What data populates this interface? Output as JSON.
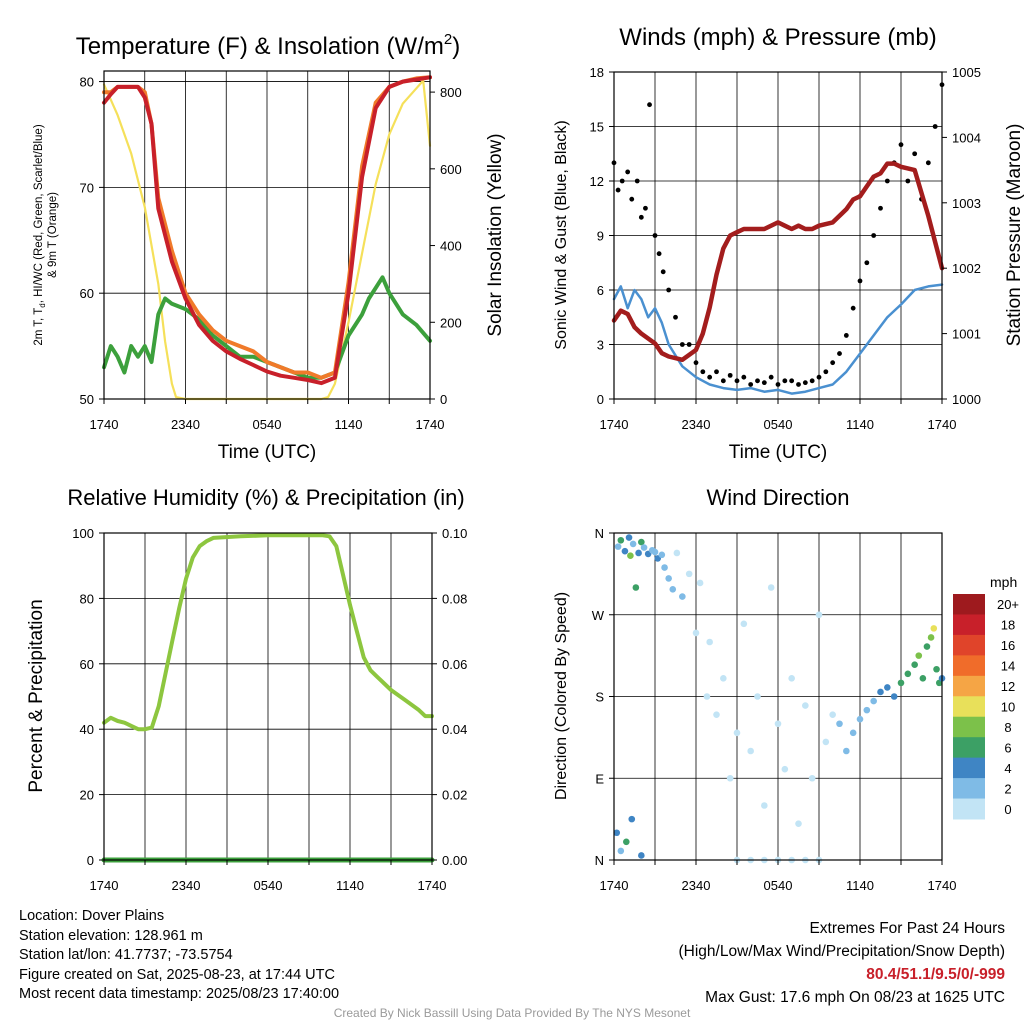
{
  "footer": {
    "location": "Location: Dover Plains",
    "elevation": "Station elevation: 128.961 m",
    "latlon": "Station lat/lon: 41.7737; -73.5754",
    "created": "Figure created on Sat, 2025-08-23, at 17:44 UTC",
    "recent": "Most recent data timestamp: 2025/08/23 17:40:00",
    "extremes_title": "Extremes For Past 24 Hours",
    "extremes_subtitle": "(High/Low/Max Wind/Precipitation/Snow Depth)",
    "extremes_values": "80.4/51.1/9.5/0/-999",
    "max_gust": "Max Gust: 17.6 mph On 08/23 at 1625 UTC",
    "credit": "Created By Nick Bassill Using Data Provided By The NYS Mesonet"
  },
  "chart_data": [
    {
      "type": "line",
      "title_main": "Temperature (F) & Insolation (W/m",
      "title_sup": "2",
      "title_end": ")",
      "xlabel": "Time (UTC)",
      "ylabel_line1": "2m T, T",
      "ylabel_sub": "d",
      "ylabel_rest": ", HI/WC (Red, Green, Scarlet/Blue)",
      "ylabel_line2": "& 9m T (Orange)",
      "ylabel_right": "Solar Insolation (Yellow)",
      "x_ticks": [
        "1740",
        "2340",
        "0540",
        "1140",
        "1740"
      ],
      "x_range_hours": [
        0,
        24
      ],
      "ylim": [
        50,
        81
      ],
      "y_ticks": [
        50,
        60,
        70,
        80
      ],
      "y2lim": [
        0,
        855
      ],
      "y2_ticks": [
        0,
        200,
        400,
        600,
        800
      ],
      "series": [
        {
          "color": "#f07a2a",
          "axis": "left",
          "x": [
            0,
            0.5,
            1,
            2,
            2.5,
            3,
            3.5,
            4,
            5,
            6,
            7,
            8,
            9,
            10,
            11,
            12,
            13,
            14,
            15,
            16,
            17,
            18,
            19,
            20,
            21,
            22,
            23,
            24
          ],
          "y": [
            79,
            79,
            79.5,
            79.5,
            79.5,
            79,
            76,
            69,
            64,
            60,
            58,
            56.5,
            55.5,
            55,
            54.5,
            53.5,
            53,
            52.5,
            52.5,
            52,
            52.5,
            61,
            72,
            78,
            79.5,
            80,
            80.3,
            80.4
          ]
        },
        {
          "color": "#c8202a",
          "axis": "left",
          "x": [
            0,
            0.5,
            1,
            2,
            2.5,
            3,
            3.5,
            4,
            5,
            6,
            7,
            8,
            9,
            10,
            11,
            12,
            13,
            14,
            15,
            16,
            17,
            18,
            19,
            20,
            21,
            22,
            23,
            24
          ],
          "y": [
            78,
            78.8,
            79.5,
            79.5,
            79.5,
            78.5,
            76,
            68,
            63,
            59.5,
            57,
            55.5,
            54.5,
            53.8,
            53.2,
            52.6,
            52.2,
            52,
            51.8,
            51.5,
            52,
            60,
            71,
            77.5,
            79.5,
            80,
            80.2,
            80.4
          ]
        },
        {
          "color": "#3ca03c",
          "axis": "left",
          "x": [
            0,
            0.5,
            1,
            1.5,
            2,
            2.5,
            3,
            3.5,
            4,
            4.5,
            5,
            6,
            7,
            8,
            9,
            10,
            11,
            12,
            13,
            14,
            15,
            16,
            17,
            18,
            19,
            19.5,
            20,
            20.5,
            21,
            22,
            23,
            24
          ],
          "y": [
            53,
            55,
            54,
            52.5,
            55,
            54,
            55,
            53.5,
            58,
            59.5,
            59,
            58.5,
            57.5,
            56,
            55,
            54,
            54,
            53.5,
            53,
            52.5,
            52,
            52,
            52.5,
            56,
            58,
            59.5,
            60.5,
            61.5,
            60,
            58,
            57,
            55.5
          ]
        },
        {
          "color": "#f5e05a",
          "axis": "right",
          "x": [
            0,
            1,
            2,
            3,
            4,
            4.5,
            5,
            5.3,
            6,
            8,
            10,
            12,
            14,
            16,
            16.5,
            17,
            18,
            19,
            20,
            21,
            22,
            23,
            23.5,
            24
          ],
          "y": [
            820,
            740,
            640,
            500,
            300,
            150,
            40,
            5,
            0,
            0,
            0,
            0,
            0,
            0,
            5,
            40,
            200,
            380,
            560,
            690,
            770,
            810,
            830,
            660
          ]
        }
      ]
    },
    {
      "type": "line",
      "title": "Winds (mph) & Pressure (mb)",
      "xlabel": "Time (UTC)",
      "ylabel": "Sonic Wind & Gust (Blue, Black)",
      "ylabel_right": "Station Pressure (Maroon)",
      "x_ticks": [
        "1740",
        "2340",
        "0540",
        "1140",
        "1740"
      ],
      "x_range_hours": [
        0,
        24
      ],
      "ylim": [
        0,
        18
      ],
      "y_ticks": [
        0,
        3,
        6,
        9,
        12,
        15,
        18
      ],
      "y2lim": [
        1000,
        1005
      ],
      "y2_ticks": [
        1000,
        1001,
        1002,
        1003,
        1004,
        1005
      ],
      "series": [
        {
          "color": "#4a90d0",
          "axis": "left",
          "x": [
            0,
            0.5,
            1,
            1.5,
            2,
            2.5,
            3,
            3.5,
            4,
            5,
            6,
            7,
            8,
            9,
            10,
            11,
            12,
            13,
            14,
            15,
            16,
            17,
            18,
            19,
            20,
            21,
            22,
            23,
            24
          ],
          "y": [
            5.5,
            6.2,
            5,
            6,
            5.5,
            4.5,
            5,
            4.2,
            3,
            1.8,
            1.2,
            0.8,
            0.6,
            0.5,
            0.6,
            0.4,
            0.5,
            0.3,
            0.4,
            0.6,
            0.8,
            1.5,
            2.5,
            3.5,
            4.5,
            5.2,
            6,
            6.2,
            6.3
          ]
        },
        {
          "color": "#000000",
          "axis": "left",
          "x": [
            0,
            0.3,
            0.6,
            1,
            1.3,
            1.7,
            2,
            2.3,
            2.6,
            3,
            3.3,
            3.6,
            4,
            4.5,
            5,
            5.5,
            6,
            6.5,
            7,
            7.5,
            8,
            8.5,
            9,
            9.5,
            10,
            10.5,
            11,
            11.5,
            12,
            12.5,
            13,
            13.5,
            14,
            14.5,
            15,
            15.5,
            16,
            16.5,
            17,
            17.5,
            18,
            18.5,
            19,
            19.5,
            20,
            20.5,
            21,
            21.5,
            22,
            22.5,
            23,
            23.5,
            24
          ],
          "y": [
            13,
            11.5,
            12,
            12.5,
            11,
            12,
            10,
            10.5,
            16.2,
            9,
            8,
            7,
            6,
            4.5,
            3,
            3,
            2,
            1.5,
            1.2,
            1.5,
            1,
            1.3,
            1,
            1.2,
            0.8,
            1,
            0.9,
            1.2,
            0.8,
            1,
            1,
            0.8,
            0.9,
            1,
            1.2,
            1.5,
            2,
            2.5,
            3.5,
            5,
            6.5,
            7.5,
            9,
            10.5,
            12,
            13,
            14,
            12,
            13.5,
            11,
            13,
            15,
            17.3
          ]
        },
        {
          "color": "#a31d1d",
          "axis": "right",
          "x": [
            0,
            0.5,
            1,
            1.5,
            2,
            3,
            3.5,
            4,
            5,
            6,
            6.5,
            7,
            7.5,
            8,
            8.5,
            9,
            9.5,
            10,
            11,
            12,
            12.5,
            13,
            13.5,
            14,
            14.5,
            15,
            16,
            17,
            17.5,
            18,
            18.5,
            19,
            19.5,
            20,
            20.5,
            21,
            22,
            23,
            24
          ],
          "y": [
            1001.2,
            1001.35,
            1001.3,
            1001.1,
            1001.0,
            1000.85,
            1000.7,
            1000.65,
            1000.6,
            1000.75,
            1001.0,
            1001.4,
            1001.9,
            1002.3,
            1002.5,
            1002.55,
            1002.6,
            1002.6,
            1002.6,
            1002.7,
            1002.65,
            1002.6,
            1002.65,
            1002.6,
            1002.6,
            1002.65,
            1002.7,
            1002.9,
            1003.05,
            1003.1,
            1003.25,
            1003.4,
            1003.45,
            1003.6,
            1003.6,
            1003.55,
            1003.5,
            1002.8,
            1002.0
          ]
        }
      ]
    },
    {
      "type": "line",
      "title": "Relative Humidity (%) & Precipitation (in)",
      "ylabel": "Percent & Precipitation",
      "x_ticks": [
        "1740",
        "2340",
        "0540",
        "1140",
        "1740"
      ],
      "x_range_hours": [
        0,
        24
      ],
      "ylim": [
        0,
        100
      ],
      "y_ticks": [
        0,
        20,
        40,
        60,
        80,
        100
      ],
      "y2lim": [
        0,
        0.1
      ],
      "y2_ticks": [
        "0.00",
        "0.02",
        "0.04",
        "0.06",
        "0.08",
        "0.10"
      ],
      "series": [
        {
          "color": "#8dc63f",
          "axis": "left",
          "x": [
            0,
            0.5,
            1,
            1.5,
            2,
            2.5,
            3,
            3.5,
            4,
            4.5,
            5,
            5.5,
            6,
            6.5,
            7,
            7.5,
            8,
            10,
            12,
            14,
            15,
            16,
            16.5,
            17,
            17.5,
            18,
            18.5,
            19,
            19.5,
            20,
            21,
            22,
            23,
            23.5,
            24
          ],
          "y": [
            42,
            43.5,
            42.5,
            42,
            41,
            40,
            40,
            40.5,
            47,
            57,
            67,
            77,
            86,
            92.5,
            96,
            97.5,
            98.5,
            99,
            99.3,
            99.3,
            99.3,
            99.3,
            99,
            96,
            87,
            78,
            70,
            62,
            58,
            56,
            52,
            49,
            46,
            44,
            44
          ]
        },
        {
          "color": "#3ca03c",
          "axis": "right",
          "x": [
            0,
            24
          ],
          "y": [
            0,
            0
          ]
        }
      ]
    },
    {
      "type": "scatter",
      "title": "Wind Direction",
      "ylabel": "Direction (Colored By Speed)",
      "x_ticks": [
        "1740",
        "2340",
        "0540",
        "1140",
        "1740"
      ],
      "x_range_hours": [
        0,
        24
      ],
      "y_ticks": [
        "N",
        "E",
        "S",
        "W",
        "N"
      ],
      "ylim_deg": [
        0,
        360
      ],
      "legend_title": "mph",
      "legend_labels": [
        "0",
        "2",
        "4",
        "6",
        "8",
        "10",
        "12",
        "14",
        "16",
        "18",
        "20+"
      ],
      "legend_colors": [
        "#c2e4f5",
        "#7fbbe6",
        "#3f85c4",
        "#3ca065",
        "#7cc14a",
        "#e8e05a",
        "#f5a545",
        "#f06c2a",
        "#e0442a",
        "#c8202a",
        "#9e1a1e"
      ],
      "points": [
        {
          "h": 0.3,
          "d": 345,
          "s": 3
        },
        {
          "h": 0.5,
          "d": 352,
          "s": 6
        },
        {
          "h": 0.8,
          "d": 340,
          "s": 4
        },
        {
          "h": 1.1,
          "d": 355,
          "s": 5
        },
        {
          "h": 1.2,
          "d": 335,
          "s": 8
        },
        {
          "h": 1.4,
          "d": 348,
          "s": 3
        },
        {
          "h": 1.6,
          "d": 300,
          "s": 7
        },
        {
          "h": 1.8,
          "d": 338,
          "s": 4
        },
        {
          "h": 2.0,
          "d": 350,
          "s": 6
        },
        {
          "h": 2.2,
          "d": 344,
          "s": 3
        },
        {
          "h": 2.5,
          "d": 337,
          "s": 5
        },
        {
          "h": 2.8,
          "d": 341,
          "s": 2
        },
        {
          "h": 3.0,
          "d": 339,
          "s": 3
        },
        {
          "h": 3.2,
          "d": 332,
          "s": 4
        },
        {
          "h": 3.5,
          "d": 336,
          "s": 2
        },
        {
          "h": 3.7,
          "d": 322,
          "s": 3
        },
        {
          "h": 4.0,
          "d": 310,
          "s": 2
        },
        {
          "h": 4.3,
          "d": 298,
          "s": 2
        },
        {
          "h": 4.6,
          "d": 338,
          "s": 1
        },
        {
          "h": 5.0,
          "d": 290,
          "s": 2
        },
        {
          "h": 5.5,
          "d": 315,
          "s": 1
        },
        {
          "h": 6.0,
          "d": 250,
          "s": 1
        },
        {
          "h": 6.3,
          "d": 305,
          "s": 1
        },
        {
          "h": 6.8,
          "d": 180,
          "s": 1
        },
        {
          "h": 7.0,
          "d": 240,
          "s": 1
        },
        {
          "h": 7.5,
          "d": 160,
          "s": 1
        },
        {
          "h": 8.0,
          "d": 200,
          "s": 1
        },
        {
          "h": 8.5,
          "d": 90,
          "s": 1
        },
        {
          "h": 9.0,
          "d": 140,
          "s": 1
        },
        {
          "h": 9.5,
          "d": 260,
          "s": 1
        },
        {
          "h": 10.0,
          "d": 120,
          "s": 1
        },
        {
          "h": 10.5,
          "d": 180,
          "s": 1
        },
        {
          "h": 11.0,
          "d": 60,
          "s": 1
        },
        {
          "h": 11.5,
          "d": 300,
          "s": 1
        },
        {
          "h": 12.0,
          "d": 150,
          "s": 1
        },
        {
          "h": 12.5,
          "d": 100,
          "s": 1
        },
        {
          "h": 13.0,
          "d": 200,
          "s": 1
        },
        {
          "h": 13.5,
          "d": 40,
          "s": 1
        },
        {
          "h": 14.0,
          "d": 170,
          "s": 1
        },
        {
          "h": 14.5,
          "d": 90,
          "s": 1
        },
        {
          "h": 15.0,
          "d": 270,
          "s": 1
        },
        {
          "h": 15.5,
          "d": 130,
          "s": 1
        },
        {
          "h": 16.0,
          "d": 160,
          "s": 1
        },
        {
          "h": 16.5,
          "d": 150,
          "s": 2
        },
        {
          "h": 17.0,
          "d": 120,
          "s": 2
        },
        {
          "h": 17.5,
          "d": 140,
          "s": 2
        },
        {
          "h": 18.0,
          "d": 155,
          "s": 2
        },
        {
          "h": 18.5,
          "d": 165,
          "s": 3
        },
        {
          "h": 19.0,
          "d": 175,
          "s": 3
        },
        {
          "h": 19.5,
          "d": 185,
          "s": 4
        },
        {
          "h": 20.0,
          "d": 190,
          "s": 4
        },
        {
          "h": 20.5,
          "d": 180,
          "s": 5
        },
        {
          "h": 21.0,
          "d": 195,
          "s": 6
        },
        {
          "h": 21.5,
          "d": 205,
          "s": 6
        },
        {
          "h": 22.0,
          "d": 215,
          "s": 7
        },
        {
          "h": 22.3,
          "d": 225,
          "s": 8
        },
        {
          "h": 22.6,
          "d": 200,
          "s": 6
        },
        {
          "h": 22.9,
          "d": 235,
          "s": 6
        },
        {
          "h": 23.2,
          "d": 245,
          "s": 8
        },
        {
          "h": 23.4,
          "d": 255,
          "s": 10
        },
        {
          "h": 23.6,
          "d": 210,
          "s": 7
        },
        {
          "h": 23.8,
          "d": 195,
          "s": 6
        },
        {
          "h": 24.0,
          "d": 200,
          "s": 4
        },
        {
          "h": 9.0,
          "d": 0,
          "s": 1
        },
        {
          "h": 10.0,
          "d": 0,
          "s": 1
        },
        {
          "h": 11.0,
          "d": 0,
          "s": 1
        },
        {
          "h": 12.0,
          "d": 0,
          "s": 1
        },
        {
          "h": 13.0,
          "d": 0,
          "s": 1
        },
        {
          "h": 14.0,
          "d": 0,
          "s": 1
        },
        {
          "h": 15.0,
          "d": 0,
          "s": 1
        },
        {
          "h": 0.2,
          "d": 30,
          "s": 5
        },
        {
          "h": 0.5,
          "d": 10,
          "s": 3
        },
        {
          "h": 0.9,
          "d": 20,
          "s": 6
        },
        {
          "h": 1.3,
          "d": 45,
          "s": 4
        },
        {
          "h": 2.0,
          "d": 5,
          "s": 4
        }
      ]
    }
  ]
}
